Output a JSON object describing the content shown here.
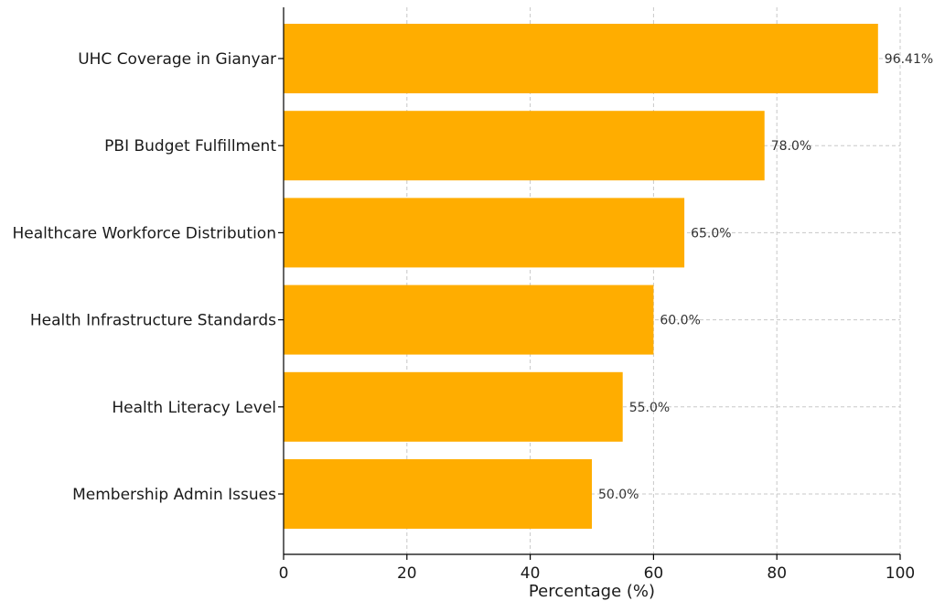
{
  "chart_data": {
    "type": "bar",
    "orientation": "horizontal",
    "categories": [
      "UHC Coverage in Gianyar",
      "PBI Budget Fulfillment",
      "Healthcare Workforce Distribution",
      "Health Infrastructure Standards",
      "Health Literacy Level",
      "Membership Admin Issues"
    ],
    "values": [
      96.41,
      78.0,
      65.0,
      60.0,
      55.0,
      50.0
    ],
    "data_labels": [
      "96.41%",
      "78.0%",
      "65.0%",
      "60.0%",
      "55.0%",
      "50.0%"
    ],
    "xlabel": "Percentage (%)",
    "ylabel": "",
    "xlim": [
      0,
      100
    ],
    "xticks": [
      0,
      20,
      40,
      60,
      80,
      100
    ],
    "grid": true,
    "bar_color": "#ffad00"
  }
}
